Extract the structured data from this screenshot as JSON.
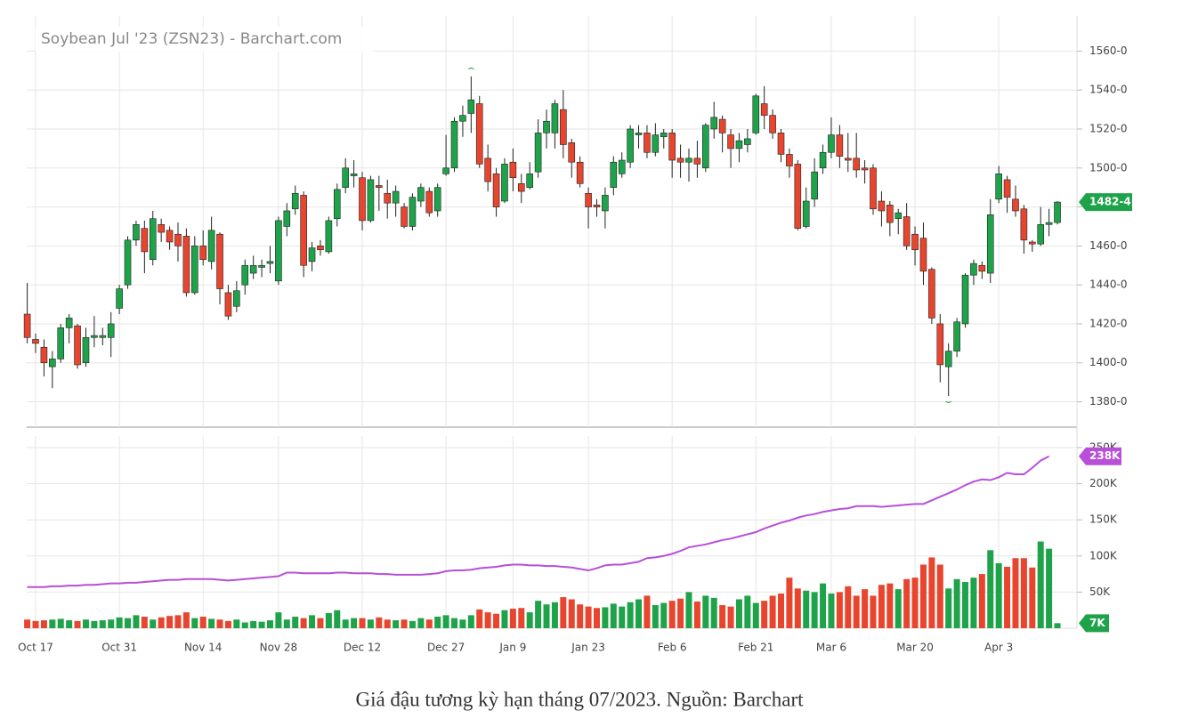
{
  "chart_data": [
    {
      "type": "candlestick",
      "title": "Soybean Jul '23 (ZSN23) - Barchart.com",
      "categories": [
        null,
        "Oct 17",
        null,
        null,
        null,
        null,
        null,
        null,
        null,
        null,
        null,
        "Oct 31",
        null,
        null,
        null,
        null,
        null,
        null,
        null,
        null,
        null,
        "Nov 14",
        null,
        null,
        null,
        null,
        null,
        null,
        null,
        null,
        "Nov 28",
        null,
        null,
        null,
        null,
        null,
        null,
        null,
        null,
        null,
        "Dec 12",
        null,
        null,
        null,
        null,
        null,
        null,
        null,
        null,
        null,
        "Dec 27",
        null,
        null,
        null,
        null,
        null,
        null,
        null,
        "Jan 9",
        null,
        null,
        null,
        null,
        null,
        null,
        null,
        null,
        "Jan 23",
        null,
        null,
        null,
        null,
        null,
        null,
        null,
        null,
        null,
        "Feb 6",
        null,
        null,
        null,
        null,
        null,
        null,
        null,
        null,
        null,
        "Feb 21",
        null,
        null,
        null,
        null,
        null,
        null,
        null,
        null,
        "Mar 6",
        null,
        null,
        null,
        null,
        null,
        null,
        null,
        null,
        null,
        "Mar 20",
        null,
        null,
        null,
        null,
        null,
        null,
        null,
        null,
        null,
        "Apr 3",
        null,
        null,
        null,
        null,
        null,
        null,
        null
      ],
      "open": [
        1425,
        1412,
        1408,
        1398,
        1402,
        1418,
        1419,
        1400,
        1413,
        1413,
        1413,
        1428,
        1440,
        1463,
        1469,
        1453,
        1471,
        1468,
        1466,
        1465,
        1436,
        1460,
        1452,
        1466,
        1436,
        1429,
        1440,
        1446,
        1449,
        1451,
        1442,
        1470,
        1479,
        1486,
        1452,
        1460,
        1457,
        1474,
        1490,
        1496,
        1495,
        1473,
        1491,
        1487,
        1482,
        1480,
        1470,
        1483,
        1488,
        1478,
        1497,
        1500,
        1524,
        1528,
        1533,
        1505,
        1497,
        1483,
        1503,
        1492,
        1490,
        1498,
        1518,
        1518,
        1530,
        1513,
        1503,
        1487,
        1481,
        1478,
        1490,
        1497,
        1503,
        1517,
        1518,
        1508,
        1516,
        1518,
        1505,
        1503,
        1505,
        1500,
        1520,
        1525,
        1517,
        1510,
        1512,
        1518,
        1533,
        1527,
        1518,
        1507,
        1502,
        1470,
        1484,
        1500,
        1508,
        1517,
        1505,
        1505,
        1500,
        1500,
        1483,
        1481,
        1474,
        1475,
        1466,
        1464,
        1448,
        1420,
        1398,
        1406,
        1420,
        1445,
        1450,
        1446,
        1484,
        1494,
        1484,
        1479,
        1462,
        1461,
        1471,
        1472
      ],
      "high": [
        1441,
        1415,
        1412,
        1406,
        1420,
        1425,
        1420,
        1418,
        1424,
        1418,
        1426,
        1440,
        1465,
        1473,
        1473,
        1478,
        1474,
        1470,
        1472,
        1469,
        1465,
        1468,
        1475,
        1467,
        1440,
        1442,
        1453,
        1455,
        1453,
        1460,
        1475,
        1482,
        1491,
        1488,
        1462,
        1463,
        1475,
        1492,
        1505,
        1504,
        1498,
        1496,
        1496,
        1494,
        1491,
        1482,
        1487,
        1492,
        1490,
        1492,
        1517,
        1526,
        1532,
        1547,
        1537,
        1512,
        1500,
        1505,
        1510,
        1497,
        1503,
        1525,
        1530,
        1535,
        1540,
        1515,
        1506,
        1490,
        1484,
        1490,
        1506,
        1508,
        1522,
        1522,
        1522,
        1523,
        1520,
        1520,
        1512,
        1510,
        1514,
        1523,
        1534,
        1527,
        1520,
        1518,
        1520,
        1538,
        1542,
        1530,
        1520,
        1510,
        1504,
        1490,
        1505,
        1512,
        1526,
        1522,
        1518,
        1518,
        1504,
        1502,
        1488,
        1483,
        1479,
        1482,
        1470,
        1472,
        1449,
        1425,
        1410,
        1423,
        1446,
        1453,
        1452,
        1484,
        1501,
        1496,
        1491,
        1481,
        1463,
        1480,
        1479,
        1483
      ],
      "low": [
        1410,
        1405,
        1393,
        1387,
        1400,
        1410,
        1397,
        1398,
        1408,
        1409,
        1403,
        1425,
        1438,
        1460,
        1446,
        1450,
        1462,
        1458,
        1452,
        1434,
        1435,
        1450,
        1448,
        1430,
        1422,
        1426,
        1435,
        1443,
        1444,
        1446,
        1440,
        1465,
        1476,
        1444,
        1447,
        1455,
        1456,
        1470,
        1487,
        1490,
        1468,
        1472,
        1478,
        1474,
        1475,
        1469,
        1468,
        1480,
        1475,
        1475,
        1496,
        1498,
        1516,
        1518,
        1500,
        1488,
        1475,
        1482,
        1488,
        1482,
        1489,
        1495,
        1510,
        1510,
        1505,
        1495,
        1490,
        1469,
        1475,
        1469,
        1486,
        1495,
        1500,
        1510,
        1505,
        1506,
        1510,
        1495,
        1495,
        1493,
        1495,
        1498,
        1515,
        1508,
        1500,
        1503,
        1508,
        1517,
        1520,
        1515,
        1503,
        1495,
        1468,
        1469,
        1480,
        1497,
        1505,
        1500,
        1498,
        1495,
        1492,
        1476,
        1470,
        1465,
        1466,
        1458,
        1450,
        1440,
        1420,
        1390,
        1383,
        1403,
        1418,
        1440,
        1443,
        1441,
        1482,
        1477,
        1475,
        1456,
        1457,
        1460,
        1465,
        1471
      ],
      "close": [
        1413,
        1410,
        1400,
        1402,
        1418,
        1423,
        1399,
        1413,
        1414,
        1414,
        1420,
        1438,
        1463,
        1471,
        1457,
        1474,
        1467,
        1462,
        1460,
        1436,
        1460,
        1453,
        1468,
        1438,
        1424,
        1437,
        1450,
        1450,
        1450,
        1452,
        1473,
        1478,
        1487,
        1450,
        1459,
        1458,
        1473,
        1489,
        1500,
        1497,
        1473,
        1494,
        1490,
        1482,
        1488,
        1470,
        1485,
        1490,
        1477,
        1490,
        1500,
        1524,
        1527,
        1535,
        1502,
        1493,
        1480,
        1502,
        1495,
        1488,
        1497,
        1518,
        1524,
        1533,
        1512,
        1503,
        1492,
        1480,
        1480,
        1486,
        1503,
        1504,
        1520,
        1518,
        1508,
        1517,
        1518,
        1504,
        1503,
        1505,
        1502,
        1522,
        1526,
        1518,
        1510,
        1514,
        1515,
        1537,
        1527,
        1518,
        1507,
        1501,
        1469,
        1483,
        1498,
        1508,
        1517,
        1506,
        1504,
        1499,
        1499,
        1479,
        1478,
        1472,
        1477,
        1460,
        1458,
        1447,
        1423,
        1399,
        1406,
        1421,
        1445,
        1451,
        1447,
        1476,
        1497,
        1485,
        1478,
        1463,
        1461,
        1471,
        1472,
        1482.5
      ],
      "last_label": "1482-4",
      "up_color": "#1fa34a",
      "down_color": "#e8452f",
      "ylim": [
        1367,
        1578
      ],
      "yticks": [
        {
          "value": 1380,
          "label": "1380-0"
        },
        {
          "value": 1400,
          "label": "1400-0"
        },
        {
          "value": 1420,
          "label": "1420-0"
        },
        {
          "value": 1440,
          "label": "1440-0"
        },
        {
          "value": 1460,
          "label": "1460-0"
        },
        {
          "value": 1480,
          "label": "1480-0"
        },
        {
          "value": 1500,
          "label": "1500-0"
        },
        {
          "value": 1520,
          "label": "1520-0"
        },
        {
          "value": 1540,
          "label": "1540-0"
        },
        {
          "value": 1560,
          "label": "1560-0"
        }
      ],
      "grid": true
    },
    {
      "type": "volume",
      "series": [
        {
          "type": "bar",
          "values": [
            12,
            10,
            11,
            12,
            13,
            11,
            10,
            12,
            10,
            11,
            12,
            15,
            14,
            18,
            16,
            12,
            15,
            17,
            18,
            22,
            14,
            16,
            13,
            12,
            10,
            12,
            8,
            10,
            9,
            11,
            22,
            12,
            16,
            14,
            18,
            14,
            21,
            25,
            12,
            14,
            14,
            12,
            15,
            12,
            11,
            12,
            10,
            14,
            12,
            16,
            18,
            14,
            12,
            18,
            26,
            22,
            20,
            25,
            27,
            28,
            22,
            38,
            33,
            36,
            43,
            40,
            33,
            30,
            28,
            29,
            34,
            30,
            36,
            40,
            45,
            32,
            35,
            38,
            41,
            50,
            37,
            45,
            42,
            32,
            30,
            40,
            45,
            35,
            38,
            45,
            48,
            70,
            55,
            52,
            50,
            62,
            48,
            50,
            58,
            45,
            54,
            45,
            60,
            62,
            54,
            68,
            70,
            88,
            98,
            88,
            55,
            68,
            64,
            70,
            75,
            108,
            90,
            85,
            97,
            97,
            84,
            120,
            110,
            7
          ],
          "last_label": "7K"
        },
        {
          "type": "line",
          "color": "#b84fd8",
          "values": [
            57,
            57,
            57,
            58,
            58,
            59,
            59,
            60,
            60,
            61,
            62,
            62,
            63,
            63,
            64,
            65,
            66,
            67,
            67,
            68,
            68,
            68,
            68,
            67,
            66,
            67,
            68,
            69,
            70,
            71,
            72,
            77,
            77,
            76,
            76,
            76,
            76,
            77,
            77,
            76,
            76,
            76,
            75,
            75,
            74,
            74,
            74,
            74,
            75,
            76,
            79,
            80,
            80,
            81,
            83,
            84,
            85,
            87,
            88,
            88,
            87,
            87,
            86,
            86,
            85,
            84,
            82,
            80,
            83,
            87,
            88,
            88,
            90,
            92,
            97,
            98,
            100,
            103,
            107,
            112,
            114,
            116,
            119,
            122,
            124,
            127,
            130,
            133,
            138,
            142,
            146,
            149,
            153,
            156,
            158,
            161,
            163,
            165,
            166,
            169,
            169,
            169,
            168,
            169,
            170,
            171,
            172,
            172,
            177,
            182,
            187,
            192,
            198,
            203,
            206,
            205,
            209,
            215,
            213,
            213,
            222,
            232,
            238,
            null
          ],
          "last_label": "238K"
        }
      ],
      "ylim": [
        0,
        266
      ],
      "yticks": [
        {
          "value": 50,
          "label": "50K"
        },
        {
          "value": 100,
          "label": "100K"
        },
        {
          "value": 150,
          "label": "150K"
        },
        {
          "value": 200,
          "label": "200K"
        },
        {
          "value": 250,
          "label": "250K"
        }
      ],
      "grid": true
    }
  ],
  "caption": "Giá đậu tương kỳ hạn tháng 07/2023. Nguồn: Barchart"
}
